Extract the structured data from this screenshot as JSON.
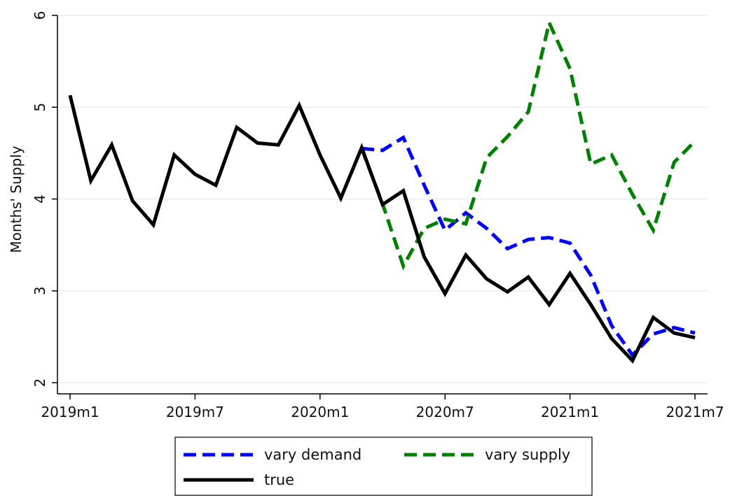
{
  "chart_data": {
    "type": "line",
    "title": "",
    "xlabel": "",
    "ylabel": "Months' Supply",
    "x_ticks": [
      "2019m1",
      "2019m7",
      "2020m1",
      "2020m7",
      "2021m1",
      "2021m7"
    ],
    "y_ticks": [
      "2",
      "3",
      "4",
      "5",
      "6"
    ],
    "ylim": [
      2,
      6
    ],
    "grid": true,
    "legend_position": "bottom",
    "x": [
      "2019m1",
      "2019m2",
      "2019m3",
      "2019m4",
      "2019m5",
      "2019m6",
      "2019m7",
      "2019m8",
      "2019m9",
      "2019m10",
      "2019m11",
      "2019m12",
      "2020m1",
      "2020m2",
      "2020m3",
      "2020m4",
      "2020m5",
      "2020m6",
      "2020m7",
      "2020m8",
      "2020m9",
      "2020m10",
      "2020m11",
      "2020m12",
      "2021m1",
      "2021m2",
      "2021m3",
      "2021m4",
      "2021m5",
      "2021m6",
      "2021m7"
    ],
    "series": [
      {
        "name": "vary demand",
        "color": "#0000ff",
        "style": "dashed",
        "values": [
          null,
          null,
          null,
          null,
          null,
          null,
          null,
          null,
          null,
          null,
          null,
          null,
          null,
          null,
          4.55,
          4.53,
          4.67,
          4.15,
          3.66,
          3.85,
          3.68,
          3.46,
          3.56,
          3.58,
          3.52,
          3.17,
          2.62,
          2.3,
          2.53,
          2.6,
          2.54
        ]
      },
      {
        "name": "vary supply",
        "color": "#008000",
        "style": "dashed",
        "values": [
          null,
          null,
          null,
          null,
          null,
          null,
          null,
          null,
          null,
          null,
          null,
          null,
          null,
          null,
          4.55,
          3.95,
          3.27,
          3.68,
          3.78,
          3.73,
          4.45,
          4.68,
          4.95,
          5.92,
          5.42,
          4.38,
          4.48,
          4.05,
          3.66,
          4.4,
          4.63
        ]
      },
      {
        "name": "true",
        "color": "#000000",
        "style": "solid",
        "values": [
          5.13,
          4.2,
          4.59,
          3.98,
          3.72,
          4.48,
          4.27,
          4.15,
          4.78,
          4.61,
          4.59,
          5.02,
          4.48,
          4.01,
          4.56,
          3.94,
          4.09,
          3.37,
          2.97,
          3.39,
          3.13,
          2.99,
          3.15,
          2.85,
          3.19,
          2.85,
          2.48,
          2.24,
          2.71,
          2.54,
          2.49
        ]
      }
    ]
  }
}
